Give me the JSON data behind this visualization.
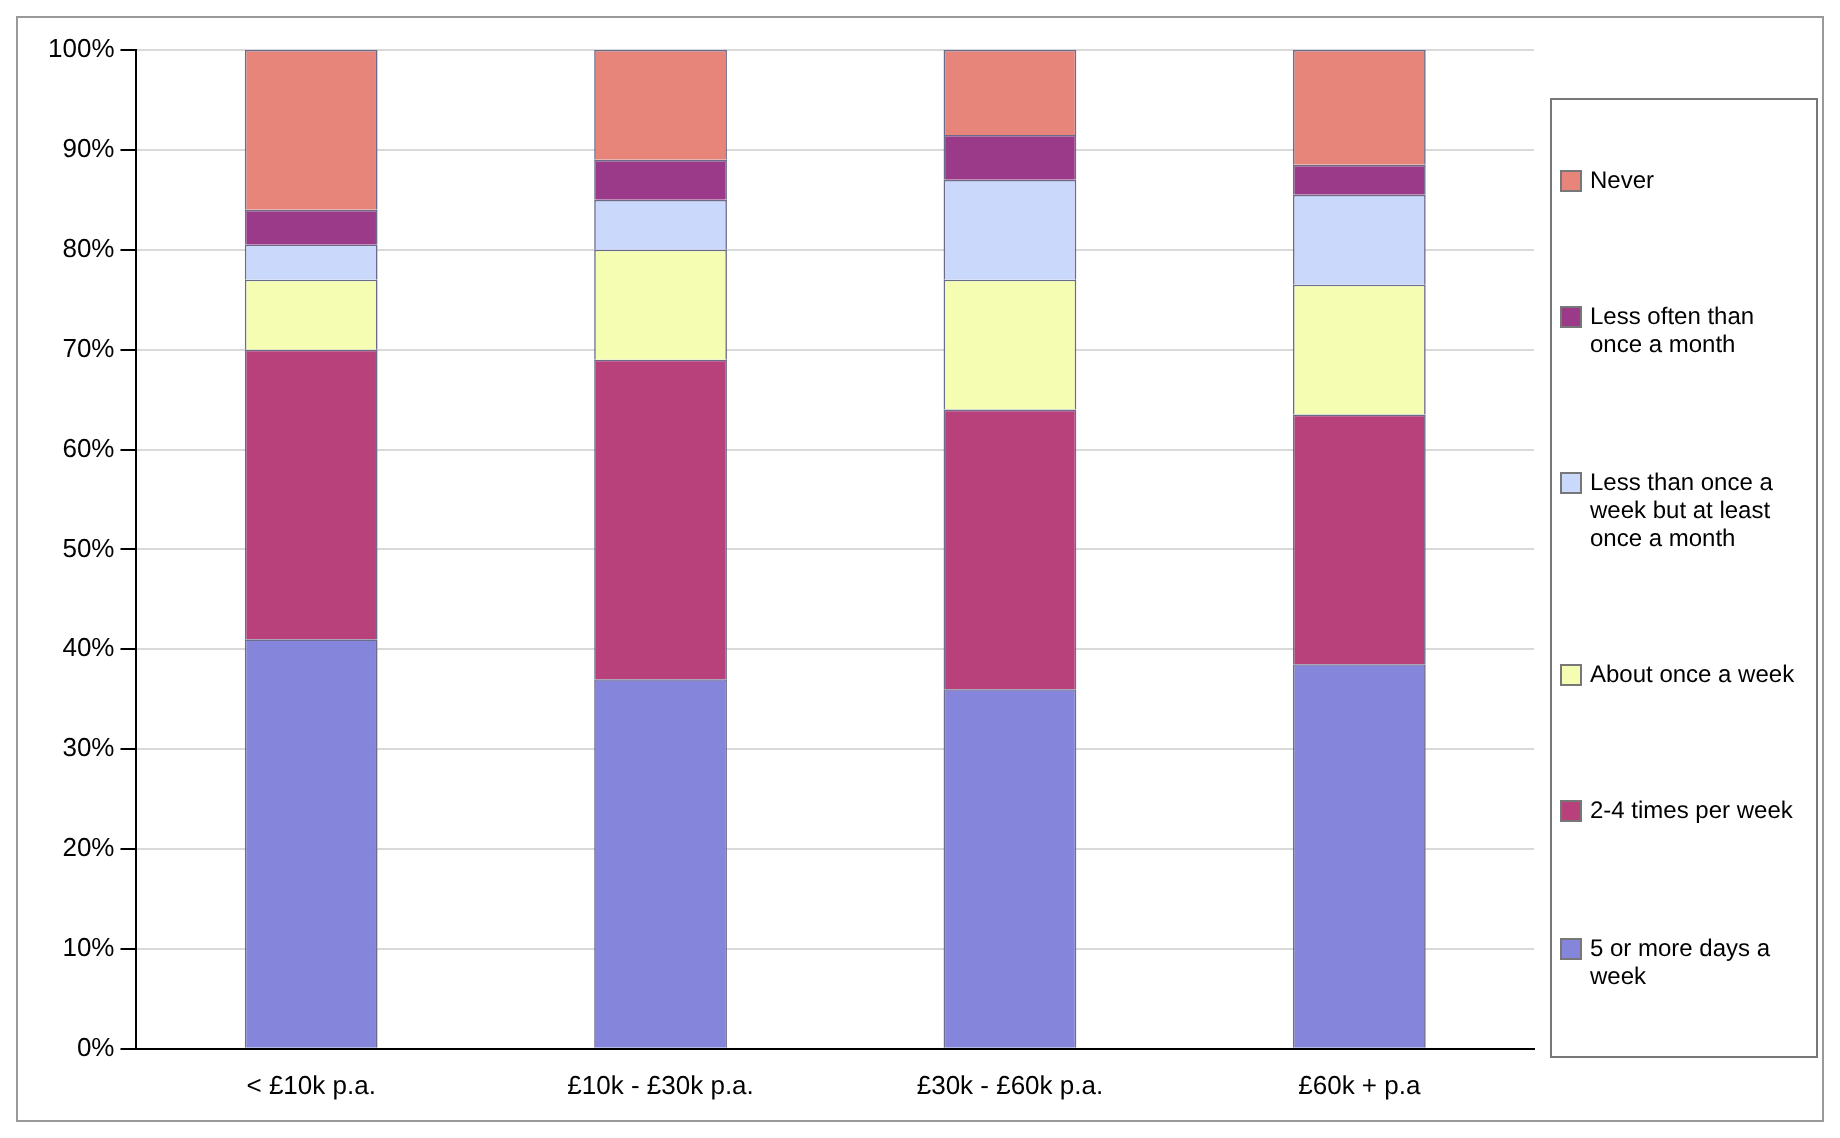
{
  "chart_data": {
    "type": "bar",
    "stacked": true,
    "categories": [
      "< £10k p.a.",
      "£10k - £30k p.a.",
      "£30k - £60k p.a.",
      "£60k + p.a"
    ],
    "series": [
      {
        "name": "5 or more days a week",
        "color": "#8585dc",
        "values": [
          41,
          37,
          36,
          38.5
        ]
      },
      {
        "name": "2-4 times per week",
        "color": "#b8417c",
        "values": [
          29,
          32,
          28,
          25
        ]
      },
      {
        "name": "About once a week",
        "color": "#f5fdb2",
        "values": [
          7,
          11,
          13,
          13
        ]
      },
      {
        "name": "Less than once a week but at least once a month",
        "color": "#cad8fb",
        "values": [
          3.5,
          5,
          10,
          9
        ]
      },
      {
        "name": "Less often than once a month",
        "color": "#9c3a8a",
        "values": [
          3.5,
          4,
          4.5,
          3
        ]
      },
      {
        "name": "Never",
        "color": "#e8857a",
        "values": [
          16,
          11,
          8.5,
          11.5
        ]
      }
    ],
    "ylim": [
      0,
      100
    ],
    "yticks": [
      {
        "value": 0,
        "label": "0%"
      },
      {
        "value": 10,
        "label": "10%"
      },
      {
        "value": 20,
        "label": "20%"
      },
      {
        "value": 30,
        "label": "30%"
      },
      {
        "value": 40,
        "label": "40%"
      },
      {
        "value": 50,
        "label": "50%"
      },
      {
        "value": 60,
        "label": "60%"
      },
      {
        "value": 70,
        "label": "70%"
      },
      {
        "value": 80,
        "label": "80%"
      },
      {
        "value": 90,
        "label": "90%"
      },
      {
        "value": 100,
        "label": "100%"
      }
    ],
    "grid": "y",
    "legend": "right"
  }
}
